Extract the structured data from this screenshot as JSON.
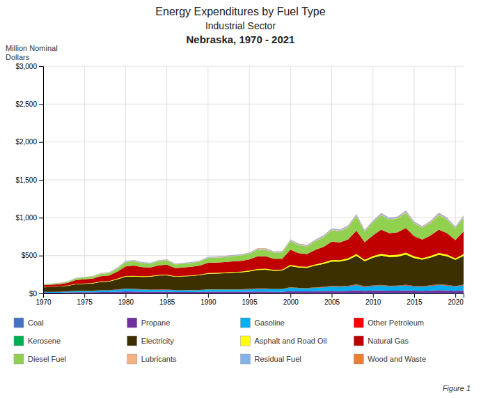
{
  "chart_data": {
    "type": "area",
    "title": "Energy Expenditures by Fuel Type",
    "subtitle": [
      "Industrial Sector",
      "Nebraska, 1970 - 2021"
    ],
    "ylabel": "Million Nominal\nDollars",
    "annotations": [
      "Figure 1"
    ],
    "stacked": true,
    "grid": true,
    "legend": "bottom",
    "x": [
      1970,
      1971,
      1972,
      1973,
      1974,
      1975,
      1976,
      1977,
      1978,
      1979,
      1980,
      1981,
      1982,
      1983,
      1984,
      1985,
      1986,
      1987,
      1988,
      1989,
      1990,
      1991,
      1992,
      1993,
      1994,
      1995,
      1996,
      1997,
      1998,
      1999,
      2000,
      2001,
      2002,
      2003,
      2004,
      2005,
      2006,
      2007,
      2008,
      2009,
      2010,
      2011,
      2012,
      2013,
      2014,
      2015,
      2016,
      2017,
      2018,
      2019,
      2020,
      2021
    ],
    "series": [
      {
        "name": "Coal",
        "color": "#4472c4",
        "values": [
          1,
          1,
          1,
          2,
          2,
          2,
          2,
          2,
          2,
          3,
          3,
          3,
          3,
          3,
          3,
          3,
          3,
          3,
          3,
          3,
          3,
          3,
          3,
          3,
          3,
          3,
          4,
          4,
          4,
          4,
          5,
          5,
          5,
          5,
          5,
          5,
          5,
          6,
          7,
          6,
          7,
          7,
          7,
          7,
          8,
          7,
          7,
          7,
          8,
          8,
          7,
          8
        ]
      },
      {
        "name": "Propane",
        "color": "#7030a0",
        "values": [
          8,
          8,
          9,
          11,
          14,
          14,
          14,
          16,
          16,
          20,
          24,
          23,
          20,
          18,
          19,
          19,
          16,
          16,
          16,
          17,
          19,
          19,
          19,
          19,
          19,
          20,
          22,
          22,
          20,
          20,
          26,
          23,
          22,
          25,
          26,
          29,
          28,
          29,
          35,
          28,
          31,
          32,
          29,
          30,
          33,
          29,
          28,
          31,
          35,
          32,
          28,
          33
        ]
      },
      {
        "name": "Gasoline",
        "color": "#00b0f0",
        "values": [
          10,
          10,
          11,
          13,
          17,
          17,
          17,
          20,
          20,
          26,
          32,
          30,
          27,
          25,
          27,
          27,
          22,
          22,
          23,
          24,
          28,
          28,
          28,
          29,
          29,
          31,
          34,
          34,
          31,
          31,
          44,
          40,
          38,
          44,
          49,
          56,
          54,
          58,
          68,
          52,
          59,
          63,
          58,
          59,
          65,
          56,
          52,
          61,
          68,
          63,
          54,
          66
        ]
      },
      {
        "name": "Other Petroleum",
        "color": "#ff0000",
        "values": [
          1,
          1,
          1,
          1,
          2,
          2,
          2,
          2,
          2,
          3,
          4,
          3,
          3,
          3,
          3,
          3,
          2,
          2,
          2,
          2,
          3,
          3,
          3,
          3,
          3,
          3,
          4,
          4,
          3,
          3,
          5,
          4,
          4,
          5,
          5,
          6,
          6,
          6,
          8,
          6,
          6,
          7,
          6,
          6,
          7,
          6,
          6,
          6,
          7,
          7,
          6,
          7
        ]
      },
      {
        "name": "Kerosene",
        "color": "#00b050",
        "values": [
          1,
          1,
          1,
          1,
          1,
          1,
          1,
          1,
          1,
          2,
          2,
          2,
          2,
          2,
          2,
          2,
          1,
          1,
          1,
          1,
          2,
          2,
          2,
          2,
          2,
          2,
          2,
          2,
          2,
          2,
          2,
          2,
          2,
          2,
          2,
          3,
          3,
          3,
          3,
          2,
          3,
          3,
          2,
          2,
          3,
          2,
          2,
          2,
          3,
          2,
          2,
          3
        ]
      },
      {
        "name": "Electricity",
        "color": "#3d3000",
        "values": [
          60,
          64,
          68,
          74,
          86,
          90,
          96,
          110,
          116,
          132,
          155,
          162,
          164,
          170,
          182,
          186,
          176,
          182,
          186,
          194,
          205,
          207,
          212,
          218,
          222,
          232,
          245,
          248,
          240,
          244,
          280,
          268,
          268,
          286,
          302,
          322,
          326,
          342,
          375,
          332,
          365,
          388,
          378,
          382,
          398,
          368,
          352,
          368,
          390,
          378,
          348,
          380
        ]
      },
      {
        "name": "Asphalt and Road Oil",
        "color": "#ffff00",
        "values": [
          3,
          3,
          3,
          4,
          5,
          5,
          5,
          7,
          7,
          9,
          11,
          10,
          9,
          8,
          9,
          9,
          7,
          7,
          7,
          8,
          9,
          9,
          9,
          10,
          10,
          10,
          12,
          12,
          11,
          11,
          16,
          14,
          13,
          16,
          18,
          20,
          18,
          20,
          25,
          18,
          21,
          25,
          23,
          24,
          25,
          22,
          18,
          20,
          23,
          22,
          18,
          22
        ]
      },
      {
        "name": "Natural Gas",
        "color": "#c00000",
        "values": [
          25,
          27,
          28,
          34,
          50,
          55,
          58,
          70,
          74,
          92,
          125,
          134,
          120,
          114,
          125,
          130,
          108,
          110,
          113,
          120,
          137,
          137,
          137,
          140,
          143,
          147,
          167,
          163,
          147,
          143,
          200,
          175,
          167,
          192,
          208,
          242,
          233,
          250,
          308,
          233,
          275,
          317,
          292,
          297,
          325,
          267,
          247,
          270,
          308,
          283,
          242,
          300
        ]
      },
      {
        "name": "Diesel Fuel",
        "color": "#92d050",
        "values": [
          10,
          11,
          12,
          14,
          21,
          23,
          25,
          30,
          32,
          40,
          55,
          58,
          52,
          48,
          55,
          57,
          46,
          48,
          51,
          53,
          63,
          64,
          66,
          69,
          71,
          74,
          86,
          87,
          80,
          83,
          115,
          106,
          101,
          115,
          129,
          150,
          147,
          159,
          190,
          138,
          167,
          190,
          178,
          182,
          201,
          167,
          152,
          170,
          193,
          178,
          152,
          184
        ]
      },
      {
        "name": "Lubricants",
        "color": "#f4b183",
        "values": [
          2,
          2,
          2,
          2,
          3,
          3,
          3,
          4,
          4,
          5,
          6,
          5,
          5,
          5,
          5,
          5,
          4,
          4,
          4,
          4,
          5,
          5,
          5,
          5,
          5,
          5,
          6,
          6,
          6,
          6,
          6,
          6,
          6,
          7,
          7,
          8,
          8,
          8,
          9,
          7,
          8,
          9,
          8,
          8,
          9,
          8,
          7,
          8,
          9,
          8,
          7,
          8
        ]
      },
      {
        "name": "Residual Fuel",
        "color": "#83b4e8",
        "values": [
          3,
          3,
          3,
          4,
          5,
          5,
          5,
          6,
          6,
          8,
          10,
          9,
          8,
          8,
          8,
          8,
          7,
          7,
          7,
          7,
          8,
          8,
          8,
          8,
          8,
          9,
          10,
          10,
          9,
          9,
          12,
          11,
          10,
          12,
          13,
          15,
          14,
          15,
          18,
          14,
          15,
          17,
          15,
          15,
          17,
          15,
          13,
          15,
          17,
          16,
          14,
          16
        ]
      },
      {
        "name": "Wood and Waste",
        "color": "#ed7d31",
        "values": [
          1,
          1,
          1,
          1,
          1,
          1,
          1,
          1,
          1,
          2,
          2,
          2,
          2,
          2,
          2,
          2,
          2,
          2,
          2,
          2,
          2,
          2,
          2,
          2,
          2,
          2,
          3,
          3,
          2,
          2,
          3,
          3,
          3,
          3,
          3,
          3,
          3,
          3,
          4,
          3,
          4,
          4,
          3,
          4,
          4,
          3,
          3,
          4,
          4,
          4,
          3,
          4
        ]
      }
    ],
    "xlim": [
      1970,
      2021
    ],
    "xticks": [
      1970,
      1975,
      1980,
      1985,
      1990,
      1995,
      2000,
      2005,
      2010,
      2015,
      2020
    ],
    "ylim": [
      0,
      3000
    ],
    "yticks": [
      {
        "value": 0,
        "label": "$0"
      },
      {
        "value": 500,
        "label": "$500"
      },
      {
        "value": 1000,
        "label": "$1,000"
      },
      {
        "value": 1500,
        "label": "$1,500"
      },
      {
        "value": 2000,
        "label": "$2,000"
      },
      {
        "value": 2500,
        "label": "$2,500"
      },
      {
        "value": 3000,
        "label": "$3,000"
      }
    ]
  }
}
